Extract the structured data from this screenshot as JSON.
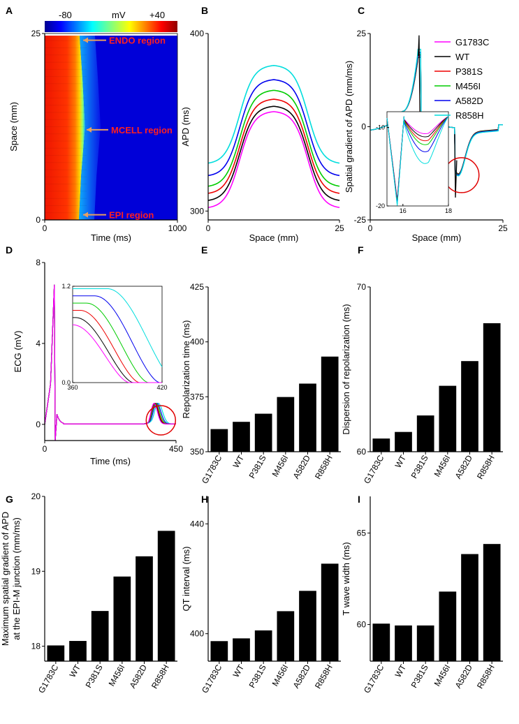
{
  "figure": {
    "series_names": [
      "G1783C",
      "WT",
      "P381S",
      "M456I",
      "A582D",
      "R858H"
    ],
    "series_colors": [
      "#ff00ff",
      "#000000",
      "#ee0000",
      "#00cc00",
      "#0000ee",
      "#00dddd"
    ]
  },
  "chart_data": [
    {
      "id": "A",
      "type": "heatmap",
      "panel_label": "A",
      "title": "",
      "colorbar_unit": "mV",
      "colorbar_ticks": [
        "-80",
        "+40"
      ],
      "zrange": [
        -80,
        40
      ],
      "xlabel": "Time (ms)",
      "ylabel": "Space (mm)",
      "xlim": [
        0,
        1000
      ],
      "ylim": [
        0,
        25
      ],
      "xticks": [
        0,
        1000
      ],
      "yticks": [
        0,
        25
      ],
      "repolarization_edge": [
        {
          "space": 0,
          "time": 258
        },
        {
          "space": 6,
          "time": 275
        },
        {
          "space": 12.5,
          "time": 305
        },
        {
          "space": 19,
          "time": 285
        },
        {
          "space": 25,
          "time": 262
        }
      ],
      "annotations": [
        {
          "text": "ENDO region",
          "space": 24
        },
        {
          "text": "MCELL region",
          "space": 12
        },
        {
          "text": "EPI region",
          "space": 0.6
        }
      ]
    },
    {
      "id": "B",
      "type": "line",
      "panel_label": "B",
      "xlabel": "Space (mm)",
      "ylabel": "APD (ms)",
      "xlim": [
        0,
        25
      ],
      "ylim": [
        295,
        400
      ],
      "xticks": [
        0,
        25
      ],
      "yticks": [
        300,
        400
      ],
      "series": [
        {
          "name": "G1783C",
          "edge": 302,
          "peak": 356
        },
        {
          "name": "WT",
          "edge": 306,
          "peak": 359
        },
        {
          "name": "P381S",
          "edge": 310,
          "peak": 363
        },
        {
          "name": "M456I",
          "edge": 314,
          "peak": 368
        },
        {
          "name": "A582D",
          "edge": 320,
          "peak": 374
        },
        {
          "name": "R858H",
          "edge": 327,
          "peak": 382
        }
      ]
    },
    {
      "id": "C",
      "type": "line",
      "panel_label": "C",
      "xlabel": "Space (mm)",
      "ylabel": "Spatial gradient of APD (mm/ms)",
      "xlim": [
        0,
        25
      ],
      "ylim": [
        -25,
        25
      ],
      "xticks": [
        0,
        25
      ],
      "yticks": [
        -25,
        0,
        25
      ],
      "legend": [
        "G1783C",
        "WT",
        "P381S",
        "M456I",
        "A582D",
        "R858H"
      ],
      "legend_position": "top-right",
      "scale": [
        1.0,
        0.975,
        1.01,
        1.03,
        1.06,
        1.12
      ],
      "inset": {
        "xlim": [
          15.3,
          18
        ],
        "ylim": [
          -20,
          -8
        ],
        "xticks": [
          16,
          18
        ],
        "yticks": [
          -20,
          -10
        ],
        "troughs": [
          -10.8,
          -11.2,
          -11.7,
          -12.2,
          -13.1,
          -14.6
        ]
      },
      "highlight": "circle"
    },
    {
      "id": "D",
      "type": "line",
      "panel_label": "D",
      "xlabel": "Time (ms)",
      "ylabel": "ECG (mV)",
      "xlim": [
        0,
        450
      ],
      "ylim": [
        -0.8,
        8
      ],
      "xticks": [
        0,
        450
      ],
      "yticks": [
        0,
        4,
        8
      ],
      "inset": {
        "xlim": [
          360,
          420
        ],
        "ylim": [
          0,
          1.2
        ],
        "xticks": [
          360,
          420
        ],
        "yticks": [
          0.0,
          1.2
        ]
      },
      "t_wave_peaks": [
        375.0,
        376.2,
        378.1,
        380.8,
        384.3,
        389.5
      ],
      "highlight": "circle"
    },
    {
      "id": "E",
      "type": "bar",
      "panel_label": "E",
      "categories": [
        "G1783C",
        "WT",
        "P381S",
        "M456I",
        "A582D",
        "R858H"
      ],
      "values": [
        360.3,
        363.6,
        367.3,
        374.9,
        381.0,
        393.3
      ],
      "ylabel": "Repolarization time (ms)",
      "xlabel": "",
      "ylim": [
        350,
        425
      ],
      "yticks": [
        350,
        375,
        400,
        425
      ]
    },
    {
      "id": "F",
      "type": "bar",
      "panel_label": "F",
      "categories": [
        "G1783C",
        "WT",
        "P381S",
        "M456I",
        "A582D",
        "R858H"
      ],
      "values": [
        60.8,
        61.2,
        62.2,
        64.0,
        65.5,
        67.8
      ],
      "ylabel": "Dispersion of repolarization (ms)",
      "xlabel": "",
      "ylim": [
        60,
        70
      ],
      "yticks": [
        60,
        70
      ]
    },
    {
      "id": "G",
      "type": "bar",
      "panel_label": "G",
      "categories": [
        "G1783C",
        "WT",
        "P381S",
        "M456I",
        "A582D",
        "R858H"
      ],
      "values": [
        18.01,
        18.07,
        18.47,
        18.93,
        19.2,
        19.54
      ],
      "ylabel": "Maximum spatial gradient of APD|at the EPI-M junction (mm/ms)",
      "xlabel": "",
      "ylim": [
        17.8,
        20
      ],
      "yticks": [
        18,
        19,
        20
      ]
    },
    {
      "id": "H",
      "type": "bar",
      "panel_label": "H",
      "categories": [
        "G1783C",
        "WT",
        "P381S",
        "M456I",
        "A582D",
        "R858H"
      ],
      "values": [
        397.3,
        398.3,
        401.2,
        408.2,
        415.6,
        425.5
      ],
      "ylabel": "QT interval (ms)",
      "xlabel": "",
      "ylim": [
        390,
        450
      ],
      "yticks": [
        400,
        440
      ]
    },
    {
      "id": "I",
      "type": "bar",
      "panel_label": "I",
      "categories": [
        "G1783C",
        "WT",
        "P381S",
        "M456I",
        "A582D",
        "R858H"
      ],
      "values": [
        60.05,
        59.95,
        59.95,
        61.8,
        63.85,
        64.4
      ],
      "ylabel": "T wave width (ms)",
      "xlabel": "",
      "ylim": [
        58,
        67
      ],
      "yticks": [
        60,
        65
      ]
    }
  ]
}
